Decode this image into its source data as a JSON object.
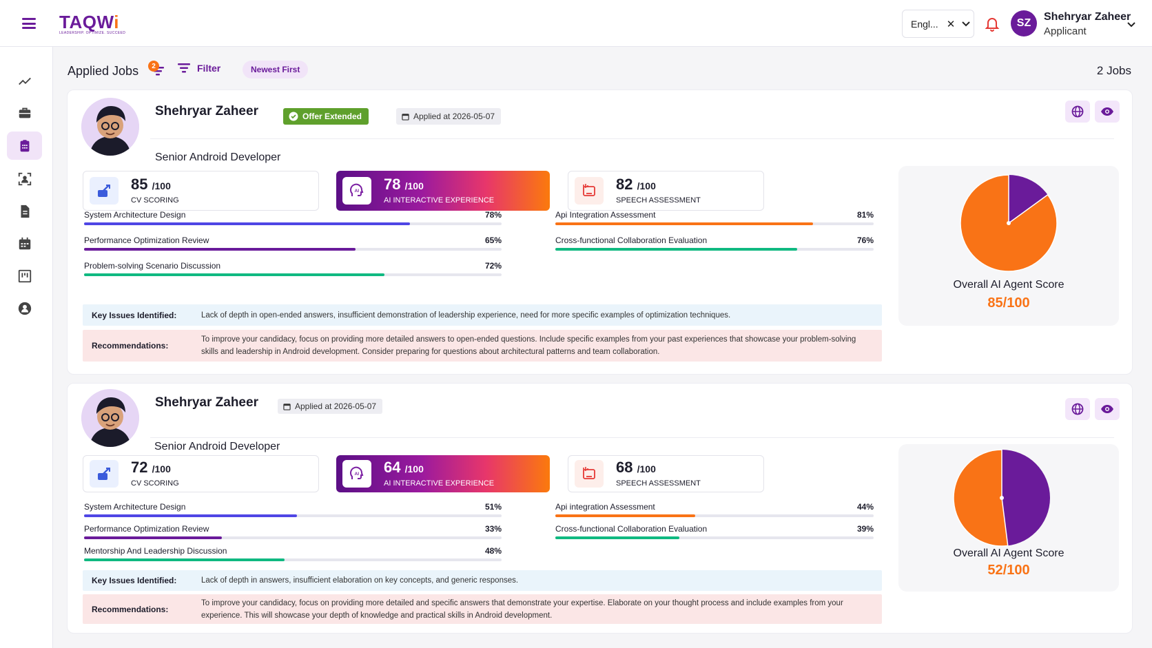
{
  "header": {
    "logo": {
      "main": "TAQW",
      "accent": "i",
      "tagline": "LEADERSHIP. OPTIMIZE. SUCCEED"
    },
    "language": "Engl...",
    "user": {
      "initials": "SZ",
      "name": "Shehryar Zaheer",
      "role": "Applicant"
    }
  },
  "sidebar": {
    "items": [
      {
        "name": "analytics",
        "icon": "trending-icon"
      },
      {
        "name": "jobs",
        "icon": "briefcase-icon"
      },
      {
        "name": "applied-jobs",
        "icon": "clipboard-icon",
        "active": true
      },
      {
        "name": "profile-scan",
        "icon": "user-scan-icon"
      },
      {
        "name": "documents",
        "icon": "document-icon"
      },
      {
        "name": "calendar",
        "icon": "calendar-icon"
      },
      {
        "name": "board",
        "icon": "kanban-icon"
      },
      {
        "name": "account",
        "icon": "account-icon"
      }
    ]
  },
  "list": {
    "title": "Applied Jobs",
    "sort_badge": "2",
    "filter_label": "Filter",
    "sort_label": "Newest First",
    "count": "2 Jobs"
  },
  "applications": [
    {
      "name": "Shehryar Zaheer",
      "status": "Offer Extended",
      "applied": "Applied at 2026-05-07",
      "role": "Senior Android Developer",
      "scores": [
        {
          "value": "85",
          "max": "/100",
          "label": "CV SCORING"
        },
        {
          "value": "78",
          "max": "/100",
          "label": "AI INTERACTIVE EXPERIENCE"
        },
        {
          "value": "82",
          "max": "/100",
          "label": "SPEECH ASSESSMENT"
        }
      ],
      "metrics_left": [
        {
          "name": "System Architecture Design",
          "pct": "78%",
          "level": 78,
          "color": "#4f46e5"
        },
        {
          "name": "Performance Optimization Review",
          "pct": "65%",
          "level": 65,
          "color": "#6a1b9a"
        },
        {
          "name": "Problem-solving Scenario Discussion",
          "pct": "72%",
          "level": 72,
          "color": "#10b981"
        }
      ],
      "metrics_right": [
        {
          "name": "Api Integration Assessment",
          "pct": "81%",
          "level": 81,
          "color": "#f97316"
        },
        {
          "name": "Cross-functional Collaboration Evaluation",
          "pct": "76%",
          "level": 76,
          "color": "#10b981"
        }
      ],
      "issues_label": "Key Issues Identified:",
      "issues": "Lack of depth in open-ended answers, insufficient demonstration of leadership experience, need for more specific examples of optimization techniques.",
      "reco_label": "Recommendations:",
      "reco": "To improve your candidacy, focus on providing more detailed answers to open-ended questions. Include specific examples from your past experiences that showcase your problem-solving skills and leadership in Android development. Consider preparing for questions about architectural patterns and team collaboration.",
      "overall_label": "Overall AI Agent Score",
      "overall": "85/100",
      "overall_level": 85
    },
    {
      "name": "Shehryar Zaheer",
      "status": "",
      "applied": "Applied at 2026-05-07",
      "role": "Senior Android Developer",
      "scores": [
        {
          "value": "72",
          "max": "/100",
          "label": "CV SCORING"
        },
        {
          "value": "64",
          "max": "/100",
          "label": "AI INTERACTIVE EXPERIENCE"
        },
        {
          "value": "68",
          "max": "/100",
          "label": "SPEECH ASSESSMENT"
        }
      ],
      "metrics_left": [
        {
          "name": "System Architecture Design",
          "pct": "51%",
          "level": 51,
          "color": "#4f46e5"
        },
        {
          "name": "Performance Optimization Review",
          "pct": "33%",
          "level": 33,
          "color": "#6a1b9a"
        },
        {
          "name": "Mentorship And Leadership Discussion",
          "pct": "48%",
          "level": 48,
          "color": "#10b981"
        }
      ],
      "metrics_right": [
        {
          "name": "Api integration Assessment",
          "pct": "44%",
          "level": 44,
          "color": "#f97316"
        },
        {
          "name": "Cross-functional Collaboration Evaluation",
          "pct": "39%",
          "level": 39,
          "color": "#10b981"
        }
      ],
      "issues_label": "Key Issues Identified:",
      "issues": "Lack of depth in answers, insufficient elaboration on key concepts, and generic responses.",
      "reco_label": "Recommendations:",
      "reco": "To improve your candidacy, focus on providing more detailed and specific answers that demonstrate your expertise. Elaborate on your thought process and include examples from your experience. This will showcase your depth of knowledge and practical skills in Android development.",
      "overall_label": "Overall AI Agent Score",
      "overall": "52/100",
      "overall_level": 52
    }
  ],
  "colors": {
    "brand": "#6a1b9a",
    "accent": "#f97316",
    "success": "#5fa02c"
  }
}
